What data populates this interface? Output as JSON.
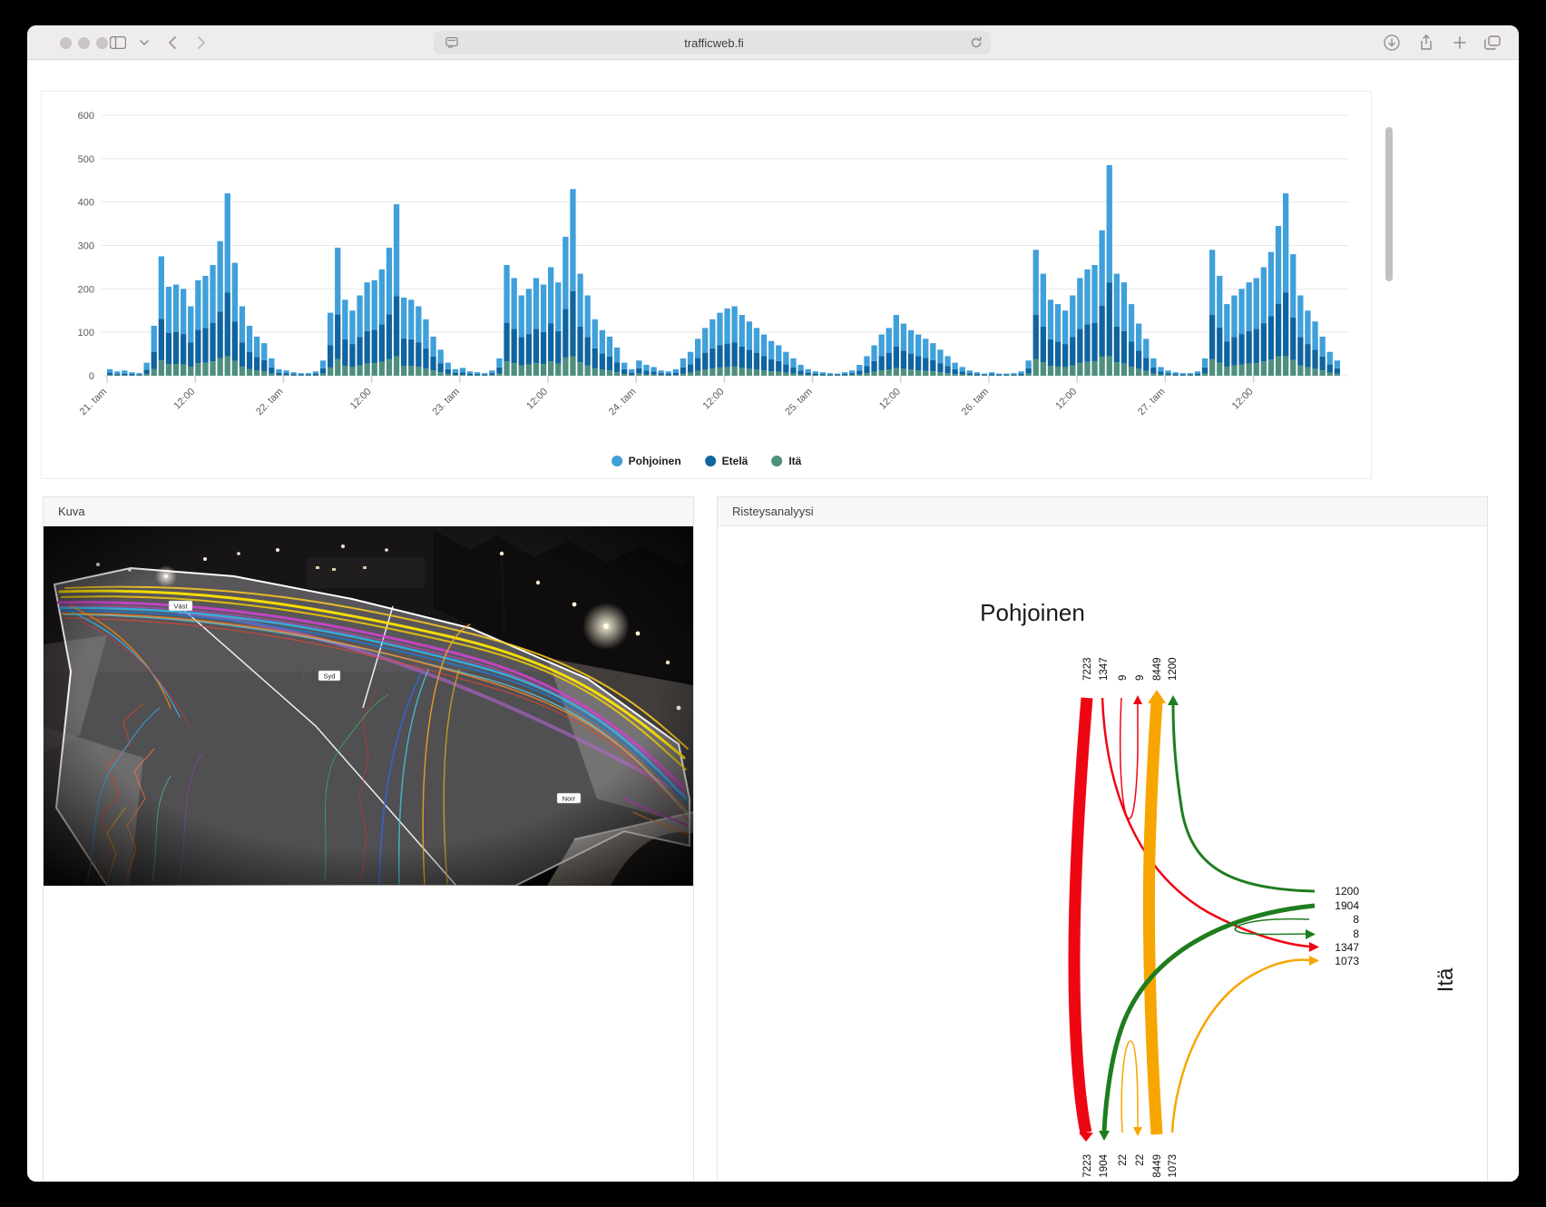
{
  "browser": {
    "url": "trafficweb.fi",
    "icon_names": [
      "sidebar-icon",
      "chevron-down-icon",
      "back-icon",
      "forward-icon",
      "reader-icon",
      "reload-icon",
      "download-icon",
      "share-icon",
      "new-tab-icon",
      "tabs-icon"
    ]
  },
  "chart_data": {
    "type": "bar",
    "stacked": true,
    "title": "",
    "xlabel": "",
    "ylabel": "",
    "ylim": [
      0,
      600
    ],
    "y_ticks": [
      0,
      100,
      200,
      300,
      400,
      500,
      600
    ],
    "grid": true,
    "legend_position": "bottom",
    "hours_per_day": 24,
    "x_tick_every_hours": 12,
    "x_tick_labels": [
      "21. tam",
      "12:00",
      "22. tam",
      "12:00",
      "23. tam",
      "12:00",
      "24. tam",
      "12:00",
      "25. tam",
      "12:00",
      "26. tam",
      "12:00",
      "27. tam",
      "12:00"
    ],
    "stack_order_bottom_to_top": [
      "Itä",
      "Etelä",
      "Pohjoinen"
    ],
    "series": [
      {
        "name": "Pohjoinen",
        "color": "#3fa0da",
        "values": [
          8,
          6,
          7,
          4,
          3,
          16,
          60,
          144,
          106,
          109,
          104,
          83,
          114,
          120,
          133,
          162,
          228,
          135,
          83,
          60,
          47,
          39,
          21,
          8,
          6,
          4,
          3,
          3,
          5,
          18,
          75,
          154,
          91,
          77,
          96,
          112,
          114,
          127,
          154,
          212,
          94,
          91,
          83,
          67,
          46,
          31,
          15,
          8,
          10,
          5,
          4,
          3,
          6,
          21,
          133,
          117,
          96,
          104,
          117,
          109,
          129,
          112,
          166,
          235,
          122,
          96,
          67,
          54,
          46,
          34,
          15,
          8,
          18,
          13,
          10,
          6,
          5,
          8,
          21,
          29,
          44,
          57,
          67,
          75,
          81,
          83,
          73,
          65,
          57,
          50,
          42,
          36,
          29,
          21,
          13,
          8,
          5,
          4,
          3,
          2,
          4,
          6,
          13,
          23,
          36,
          50,
          57,
          73,
          62,
          54,
          50,
          44,
          39,
          31,
          23,
          15,
          10,
          6,
          4,
          2,
          4,
          2,
          2,
          3,
          5,
          18,
          150,
          122,
          91,
          86,
          77,
          96,
          117,
          127,
          133,
          174,
          270,
          122,
          112,
          86,
          62,
          44,
          21,
          10,
          6,
          4,
          3,
          3,
          5,
          21,
          150,
          119,
          86,
          96,
          104,
          112,
          117,
          129,
          148,
          179,
          228,
          146,
          96,
          77,
          65,
          46,
          29,
          18
        ]
      },
      {
        "name": "Etelä",
        "color": "#10649f",
        "values": [
          5,
          3,
          4,
          3,
          2,
          10,
          40,
          96,
          72,
          74,
          70,
          56,
          77,
          80,
          89,
          108,
          147,
          91,
          56,
          40,
          31,
          26,
          14,
          5,
          4,
          3,
          2,
          2,
          4,
          12,
          51,
          103,
          61,
          53,
          65,
          75,
          77,
          86,
          103,
          138,
          63,
          61,
          56,
          46,
          32,
          21,
          11,
          5,
          6,
          4,
          3,
          2,
          4,
          14,
          89,
          79,
          65,
          70,
          79,
          74,
          88,
          75,
          112,
          150,
          82,
          65,
          46,
          37,
          32,
          23,
          11,
          5,
          12,
          9,
          7,
          4,
          4,
          5,
          14,
          19,
          30,
          39,
          46,
          51,
          54,
          56,
          49,
          44,
          39,
          33,
          28,
          25,
          19,
          14,
          9,
          5,
          4,
          3,
          2,
          2,
          3,
          4,
          9,
          16,
          25,
          33,
          39,
          49,
          42,
          37,
          33,
          30,
          26,
          21,
          16,
          11,
          7,
          4,
          3,
          2,
          3,
          2,
          2,
          2,
          4,
          12,
          102,
          82,
          61,
          58,
          53,
          65,
          79,
          86,
          89,
          117,
          170,
          82,
          75,
          58,
          42,
          30,
          14,
          7,
          4,
          3,
          2,
          2,
          4,
          14,
          102,
          81,
          58,
          65,
          70,
          75,
          79,
          88,
          100,
          121,
          147,
          98,
          65,
          53,
          44,
          32,
          19,
          12
        ]
      },
      {
        "name": "Itä",
        "color": "#4f8f7d",
        "values": [
          2,
          1,
          1,
          1,
          1,
          4,
          15,
          35,
          27,
          27,
          26,
          21,
          29,
          30,
          33,
          40,
          45,
          34,
          21,
          15,
          12,
          10,
          5,
          2,
          2,
          1,
          1,
          1,
          1,
          5,
          19,
          38,
          23,
          20,
          24,
          28,
          29,
          32,
          38,
          45,
          23,
          23,
          21,
          17,
          12,
          8,
          4,
          2,
          2,
          1,
          1,
          1,
          2,
          5,
          33,
          29,
          24,
          26,
          29,
          27,
          33,
          28,
          42,
          45,
          31,
          24,
          17,
          14,
          12,
          8,
          4,
          2,
          5,
          3,
          3,
          2,
          1,
          2,
          5,
          7,
          11,
          14,
          17,
          19,
          20,
          21,
          18,
          16,
          14,
          12,
          10,
          9,
          7,
          5,
          3,
          2,
          1,
          1,
          1,
          1,
          1,
          2,
          3,
          6,
          9,
          12,
          14,
          18,
          16,
          14,
          12,
          11,
          10,
          8,
          6,
          4,
          3,
          2,
          1,
          1,
          1,
          1,
          1,
          1,
          1,
          5,
          38,
          31,
          23,
          21,
          20,
          24,
          29,
          32,
          33,
          44,
          45,
          31,
          28,
          21,
          16,
          11,
          5,
          3,
          2,
          1,
          1,
          1,
          1,
          5,
          38,
          30,
          21,
          24,
          26,
          28,
          29,
          33,
          37,
          45,
          45,
          36,
          24,
          20,
          16,
          12,
          7,
          5
        ]
      }
    ]
  },
  "kuva": {
    "title": "Kuva",
    "region_labels": [
      "Väst",
      "Syd",
      "Norr"
    ]
  },
  "risteys": {
    "title": "Risteysanalyysi",
    "diagram_title": "Pohjoinen",
    "right_axis_label": "Itä",
    "top_labels": [
      "7223",
      "1347",
      "9",
      "9",
      "8449",
      "1200"
    ],
    "bottom_labels": [
      "7223",
      "1904",
      "22",
      "22",
      "8449",
      "1073"
    ],
    "right_labels": [
      "1200",
      "1904",
      "8",
      "8",
      "1347",
      "1073"
    ],
    "flows": [
      {
        "from": "north",
        "to": "south",
        "value": 7223,
        "color_key": "flow_red"
      },
      {
        "from": "north",
        "to": "east",
        "value": 1347,
        "color_key": "flow_red"
      },
      {
        "from": "north",
        "to": "north",
        "value": 9,
        "color_key": "flow_red"
      },
      {
        "from": "south",
        "to": "north",
        "value": 8449,
        "color_key": "flow_orange"
      },
      {
        "from": "south",
        "to": "east",
        "value": 1073,
        "color_key": "flow_orange"
      },
      {
        "from": "south",
        "to": "south",
        "value": 22,
        "color_key": "flow_orange"
      },
      {
        "from": "east",
        "to": "north",
        "value": 1200,
        "color_key": "flow_green"
      },
      {
        "from": "east",
        "to": "south",
        "value": 1904,
        "color_key": "flow_green"
      },
      {
        "from": "east",
        "to": "east",
        "value": 8,
        "color_key": "flow_green"
      }
    ]
  },
  "colors": {
    "pohjoinen": "#3fa0da",
    "etela": "#10649f",
    "ita": "#4f8f7d",
    "flow_red": "#ee0613",
    "flow_orange": "#f7a600",
    "flow_green": "#1e7d1e",
    "grid": "#e8e8e8",
    "axis_text": "#5a5a5a"
  }
}
